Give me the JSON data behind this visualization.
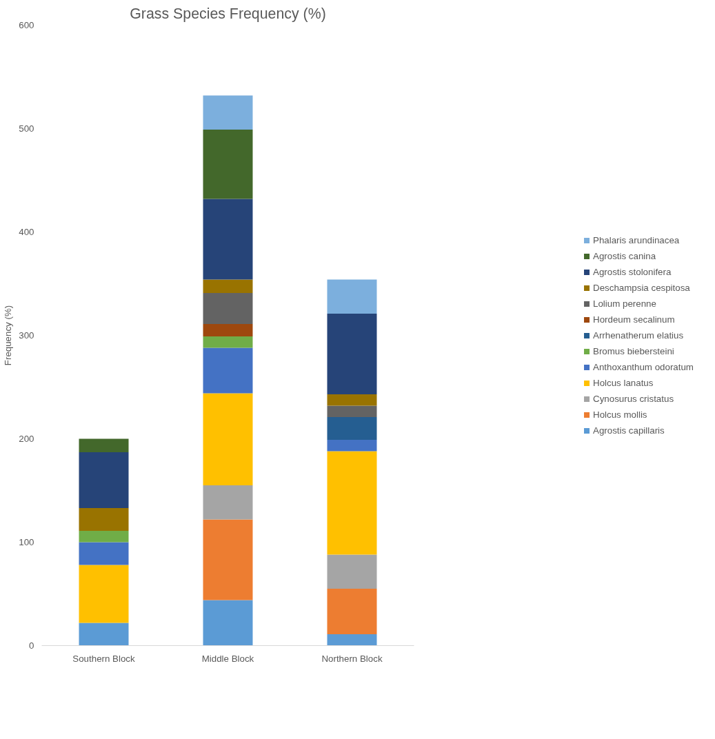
{
  "chart_data": {
    "type": "bar",
    "stacked": true,
    "title": "Grass Species Frequency (%)",
    "ylabel": "Frequency (%)",
    "categories": [
      "Southern Block",
      "Middle Block",
      "Northern Block"
    ],
    "ylim": [
      0,
      600
    ],
    "yticks": [
      0,
      100,
      200,
      300,
      400,
      500,
      600
    ],
    "grid": false,
    "legend": "right",
    "series": [
      {
        "name": "Agrostis capillaris",
        "color": "#5b9bd5",
        "values": [
          22,
          44,
          11
        ]
      },
      {
        "name": "Holcus mollis",
        "color": "#ed7d31",
        "values": [
          0,
          78,
          44
        ]
      },
      {
        "name": "Cynosurus cristatus",
        "color": "#a5a5a5",
        "values": [
          0,
          33,
          33
        ]
      },
      {
        "name": "Holcus lanatus",
        "color": "#ffc000",
        "values": [
          56,
          89,
          100
        ]
      },
      {
        "name": "Anthoxanthum odoratum",
        "color": "#4472c4",
        "values": [
          22,
          44,
          11
        ]
      },
      {
        "name": "Bromus biebersteini",
        "color": "#70ad47",
        "values": [
          11,
          11,
          0
        ]
      },
      {
        "name": "Arrhenatherum elatius",
        "color": "#255e91",
        "values": [
          0,
          0,
          22
        ]
      },
      {
        "name": "Hordeum secalinum",
        "color": "#9e480e",
        "values": [
          0,
          12,
          0
        ]
      },
      {
        "name": "Lolium perenne",
        "color": "#636363",
        "values": [
          0,
          30,
          11
        ]
      },
      {
        "name": "Deschampsia cespitosa",
        "color": "#997300",
        "values": [
          22,
          13,
          11
        ]
      },
      {
        "name": "Agrostis stolonifera",
        "color": "#264478",
        "values": [
          54,
          78,
          78
        ]
      },
      {
        "name": "Agrostis canina",
        "color": "#43682b",
        "values": [
          13,
          67,
          0
        ]
      },
      {
        "name": "Phalaris arundinacea",
        "color": "#7cafdd",
        "values": [
          0,
          33,
          33
        ]
      }
    ]
  }
}
